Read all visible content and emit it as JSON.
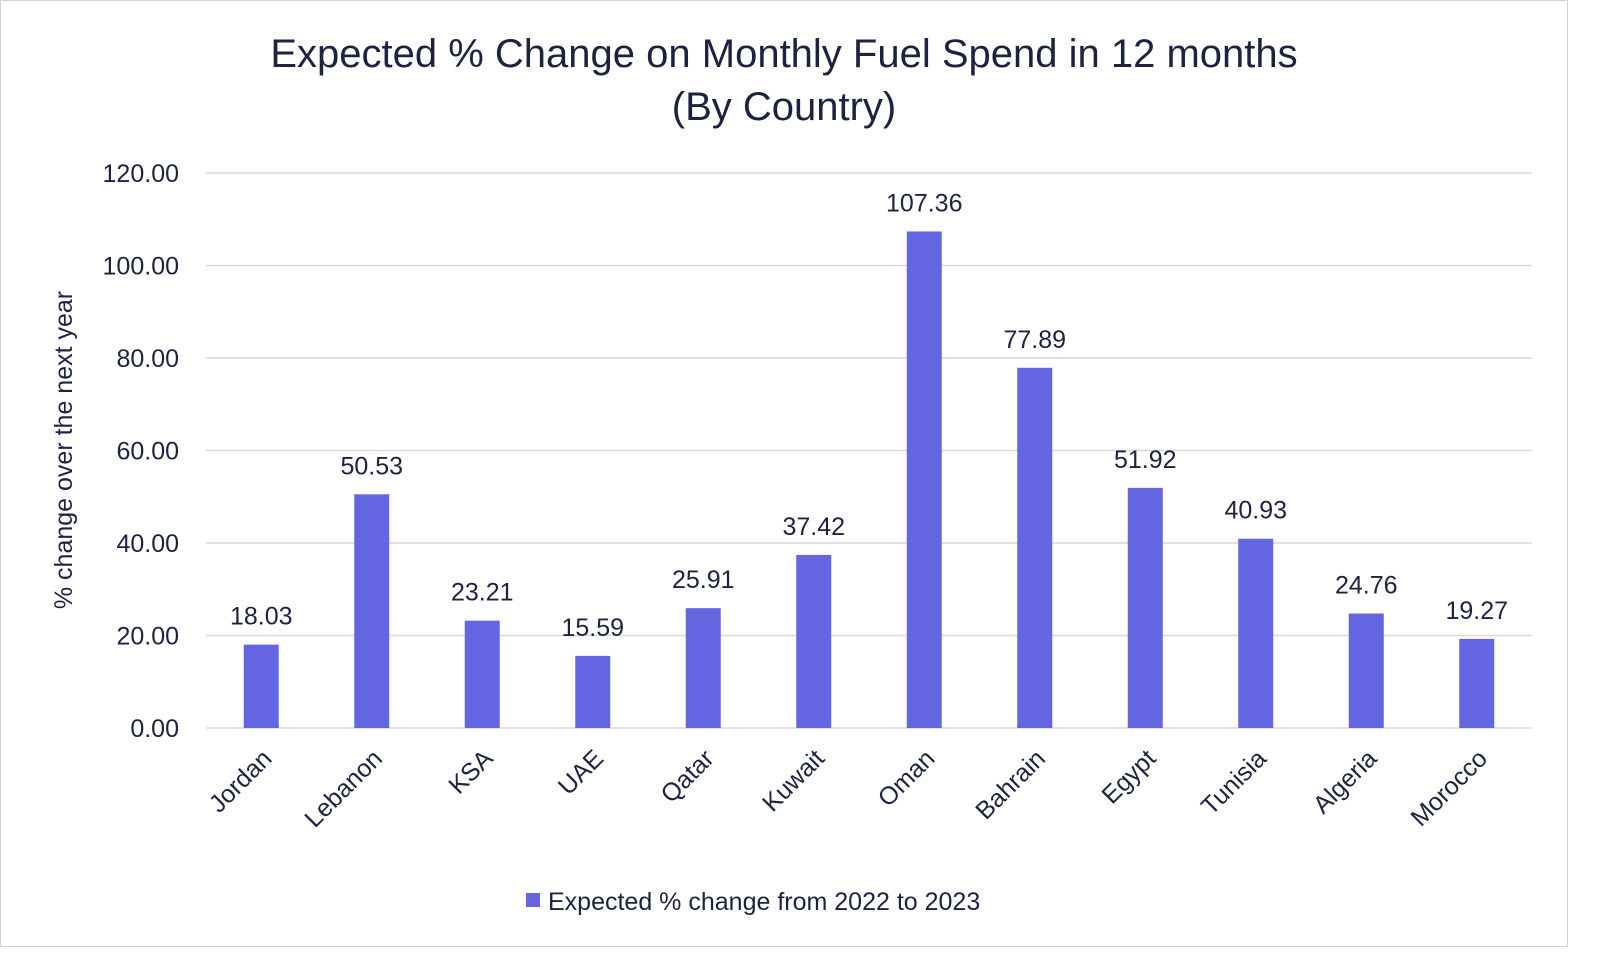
{
  "chart_data": {
    "type": "bar",
    "title_lines": [
      "Expected % Change on Monthly Fuel Spend in 12 months",
      "(By Country)"
    ],
    "xlabel": "",
    "ylabel": "% change over the next year",
    "ylim": [
      0,
      120
    ],
    "yticks": [
      "0.00",
      "20.00",
      "40.00",
      "60.00",
      "80.00",
      "100.00",
      "120.00"
    ],
    "categories": [
      "Jordan",
      "Lebanon",
      "KSA",
      "UAE",
      "Qatar",
      "Kuwait",
      "Oman",
      "Bahrain",
      "Egypt",
      "Tunisia",
      "Algeria",
      "Morocco"
    ],
    "series": [
      {
        "name": "Expected % change from 2022 to 2023",
        "color": "#6366e0",
        "values": [
          18.03,
          50.53,
          23.21,
          15.59,
          25.91,
          37.42,
          107.36,
          77.89,
          51.92,
          40.93,
          24.76,
          19.27
        ],
        "labels": [
          "18.03",
          "50.53",
          "23.21",
          "15.59",
          "25.91",
          "37.42",
          "107.36",
          "77.89",
          "51.92",
          "40.93",
          "24.76",
          "19.27"
        ]
      }
    ],
    "grid": true,
    "legend_position": "bottom"
  }
}
